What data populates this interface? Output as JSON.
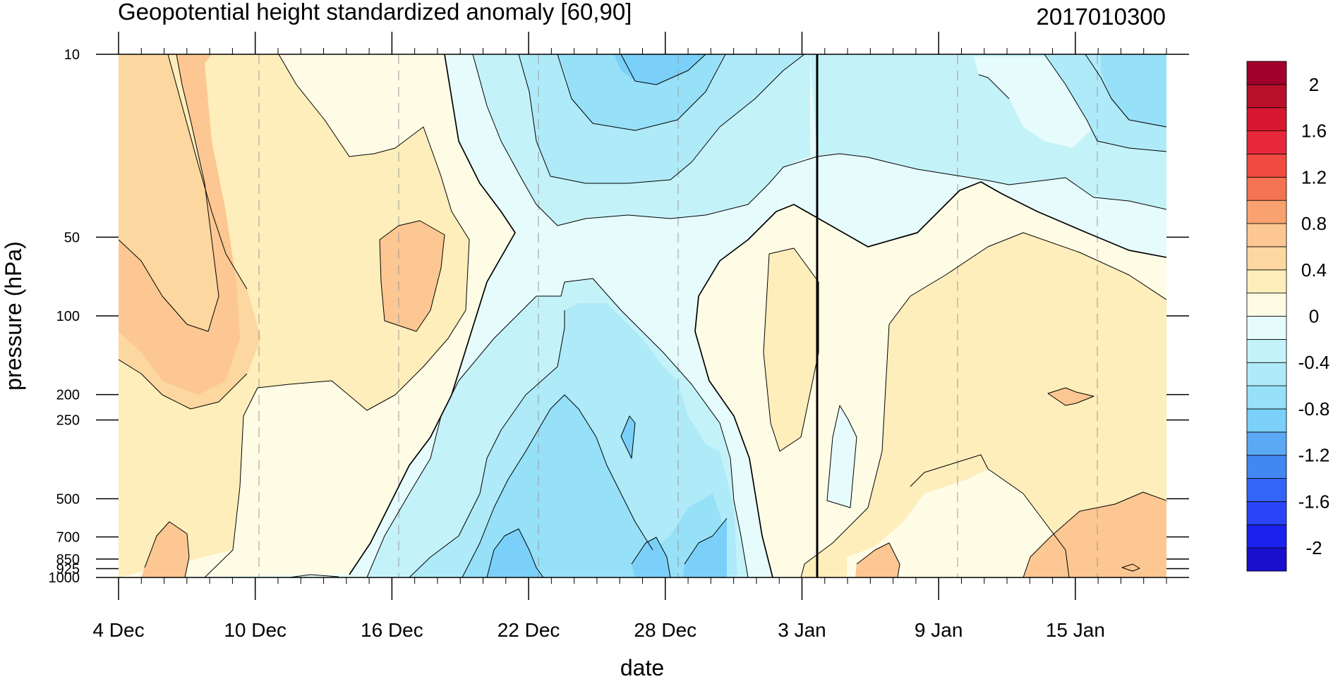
{
  "chart_data": {
    "type": "heatmap",
    "subtype": "filled-contour time-pressure section",
    "title": "Geopotential height standardized anomaly [60,90]",
    "title_right": "2017010300",
    "xlabel": "date",
    "ylabel": "pressure (hPa)",
    "x_range": [
      "2016-12-04",
      "2017-01-19"
    ],
    "x_tick_labels": [
      "4 Dec",
      "10 Dec",
      "16 Dec",
      "22 Dec",
      "28 Dec",
      "3 Jan",
      "9 Jan",
      "15 Jan"
    ],
    "x_tick_dates": [
      "2016-12-04",
      "2016-12-10",
      "2016-12-16",
      "2016-12-22",
      "2016-12-28",
      "2017-01-03",
      "2017-01-09",
      "2017-01-15"
    ],
    "y_scale": "log",
    "y_range": [
      1000,
      10
    ],
    "y_tick_labels": [
      "10",
      "50",
      "100",
      "200",
      "250",
      "500",
      "700",
      "850",
      "925",
      "1000"
    ],
    "y_tick_values": [
      10,
      50,
      100,
      200,
      250,
      500,
      700,
      850,
      925,
      1000
    ],
    "vertical_line_date": "2017-01-03",
    "gridlines": "dashed vertical at major date ticks",
    "contour_levels": [
      -2,
      -1.8,
      -1.6,
      -1.4,
      -1.2,
      -1.0,
      -0.8,
      -0.6,
      -0.4,
      -0.2,
      0,
      0.2,
      0.4,
      0.6,
      0.8,
      1.0,
      1.2,
      1.4,
      1.6,
      1.8,
      2
    ],
    "colorbar": {
      "position": "right",
      "colors": [
        "#1a0fcc",
        "#1c22ee",
        "#2a45f8",
        "#3366f8",
        "#4287f2",
        "#5ba8f5",
        "#7ad0f8",
        "#96e0f8",
        "#aeeaf8",
        "#c4f2f9",
        "#e6fbfb",
        "#fffce6",
        "#fdeebb",
        "#fcd7a0",
        "#fcc792",
        "#f9a270",
        "#f47350",
        "#f14a40",
        "#e6283a",
        "#d71730",
        "#b8102b",
        "#a0002a"
      ],
      "labels": [
        "-2",
        "-1.6",
        "-1.2",
        "-0.8",
        "-0.4",
        "0",
        "0.4",
        "0.8",
        "1.2",
        "1.6",
        "2"
      ]
    },
    "features": [
      {
        "value_range": [
          0.4,
          0.8
        ],
        "date_span": [
          "2016-12-04",
          "2016-12-11"
        ],
        "pressure_span": [
          10,
          220
        ],
        "description": "positive anomaly core upper levels early Dec"
      },
      {
        "value_range": [
          0.4,
          0.6
        ],
        "date_span": [
          "2016-12-15",
          "2016-12-18"
        ],
        "pressure_span": [
          45,
          115
        ]
      },
      {
        "value_range": [
          -0.8,
          -0.6
        ],
        "date_span": [
          "2016-12-21",
          "2017-01-02"
        ],
        "pressure_span": [
          10,
          45
        ]
      },
      {
        "value_range": [
          -0.8,
          -0.6
        ],
        "date_span": [
          "2016-12-20",
          "2016-12-31"
        ],
        "pressure_span": [
          180,
          1000
        ]
      },
      {
        "value_range": [
          0.2,
          0.4
        ],
        "date_span": [
          "2017-01-04",
          "2017-01-19"
        ],
        "pressure_span": [
          55,
          1000
        ]
      },
      {
        "value_range": [
          -0.6,
          -0.4
        ],
        "date_span": [
          "2017-01-14",
          "2017-01-19"
        ],
        "pressure_span": [
          10,
          30
        ]
      }
    ]
  }
}
